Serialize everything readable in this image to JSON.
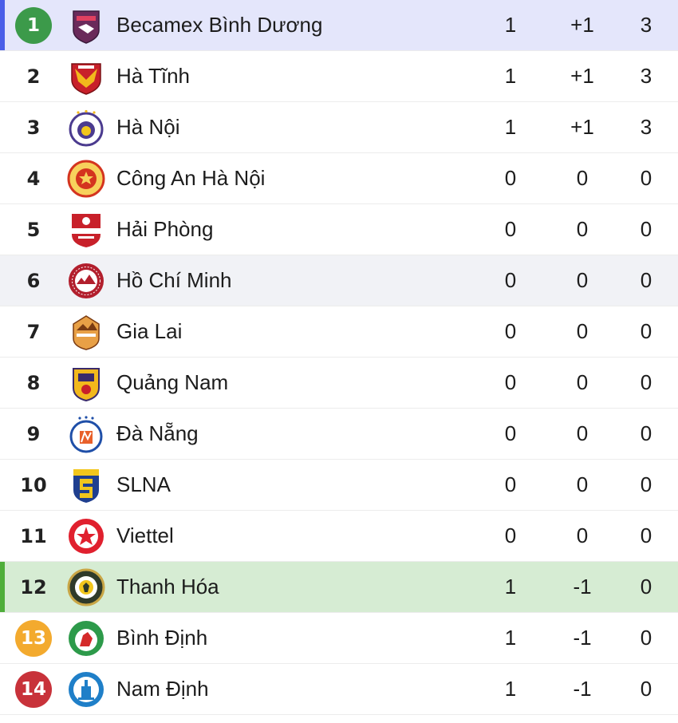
{
  "colors": {
    "blue_accent": "#4a5ee8",
    "green_accent": "#4fae3a",
    "badge_green": "#3c9a4a",
    "badge_orange": "#f3aa2e",
    "badge_red": "#c8323a"
  },
  "rows": [
    {
      "rank": "1",
      "team": "Becamex Bình Dương",
      "played": "1",
      "diff": "+1",
      "points": "3",
      "logo": "becamex-binh-duong-logo"
    },
    {
      "rank": "2",
      "team": "Hà Tĩnh",
      "played": "1",
      "diff": "+1",
      "points": "3",
      "logo": "ha-tinh-logo"
    },
    {
      "rank": "3",
      "team": "Hà Nội",
      "played": "1",
      "diff": "+1",
      "points": "3",
      "logo": "ha-noi-logo"
    },
    {
      "rank": "4",
      "team": "Công An Hà Nội",
      "played": "0",
      "diff": "0",
      "points": "0",
      "logo": "cong-an-ha-noi-logo"
    },
    {
      "rank": "5",
      "team": "Hải Phòng",
      "played": "0",
      "diff": "0",
      "points": "0",
      "logo": "hai-phong-logo"
    },
    {
      "rank": "6",
      "team": "Hồ Chí Minh",
      "played": "0",
      "diff": "0",
      "points": "0",
      "logo": "ho-chi-minh-logo"
    },
    {
      "rank": "7",
      "team": "Gia Lai",
      "played": "0",
      "diff": "0",
      "points": "0",
      "logo": "gia-lai-logo"
    },
    {
      "rank": "8",
      "team": "Quảng Nam",
      "played": "0",
      "diff": "0",
      "points": "0",
      "logo": "quang-nam-logo"
    },
    {
      "rank": "9",
      "team": "Đà Nẵng",
      "played": "0",
      "diff": "0",
      "points": "0",
      "logo": "da-nang-logo"
    },
    {
      "rank": "10",
      "team": "SLNA",
      "played": "0",
      "diff": "0",
      "points": "0",
      "logo": "slna-logo"
    },
    {
      "rank": "11",
      "team": "Viettel",
      "played": "0",
      "diff": "0",
      "points": "0",
      "logo": "viettel-logo"
    },
    {
      "rank": "12",
      "team": "Thanh Hóa",
      "played": "1",
      "diff": "-1",
      "points": "0",
      "logo": "thanh-hoa-logo"
    },
    {
      "rank": "13",
      "team": "Bình Định",
      "played": "1",
      "diff": "-1",
      "points": "0",
      "logo": "binh-dinh-logo"
    },
    {
      "rank": "14",
      "team": "Nam Định",
      "played": "1",
      "diff": "-1",
      "points": "0",
      "logo": "nam-dinh-logo"
    }
  ]
}
